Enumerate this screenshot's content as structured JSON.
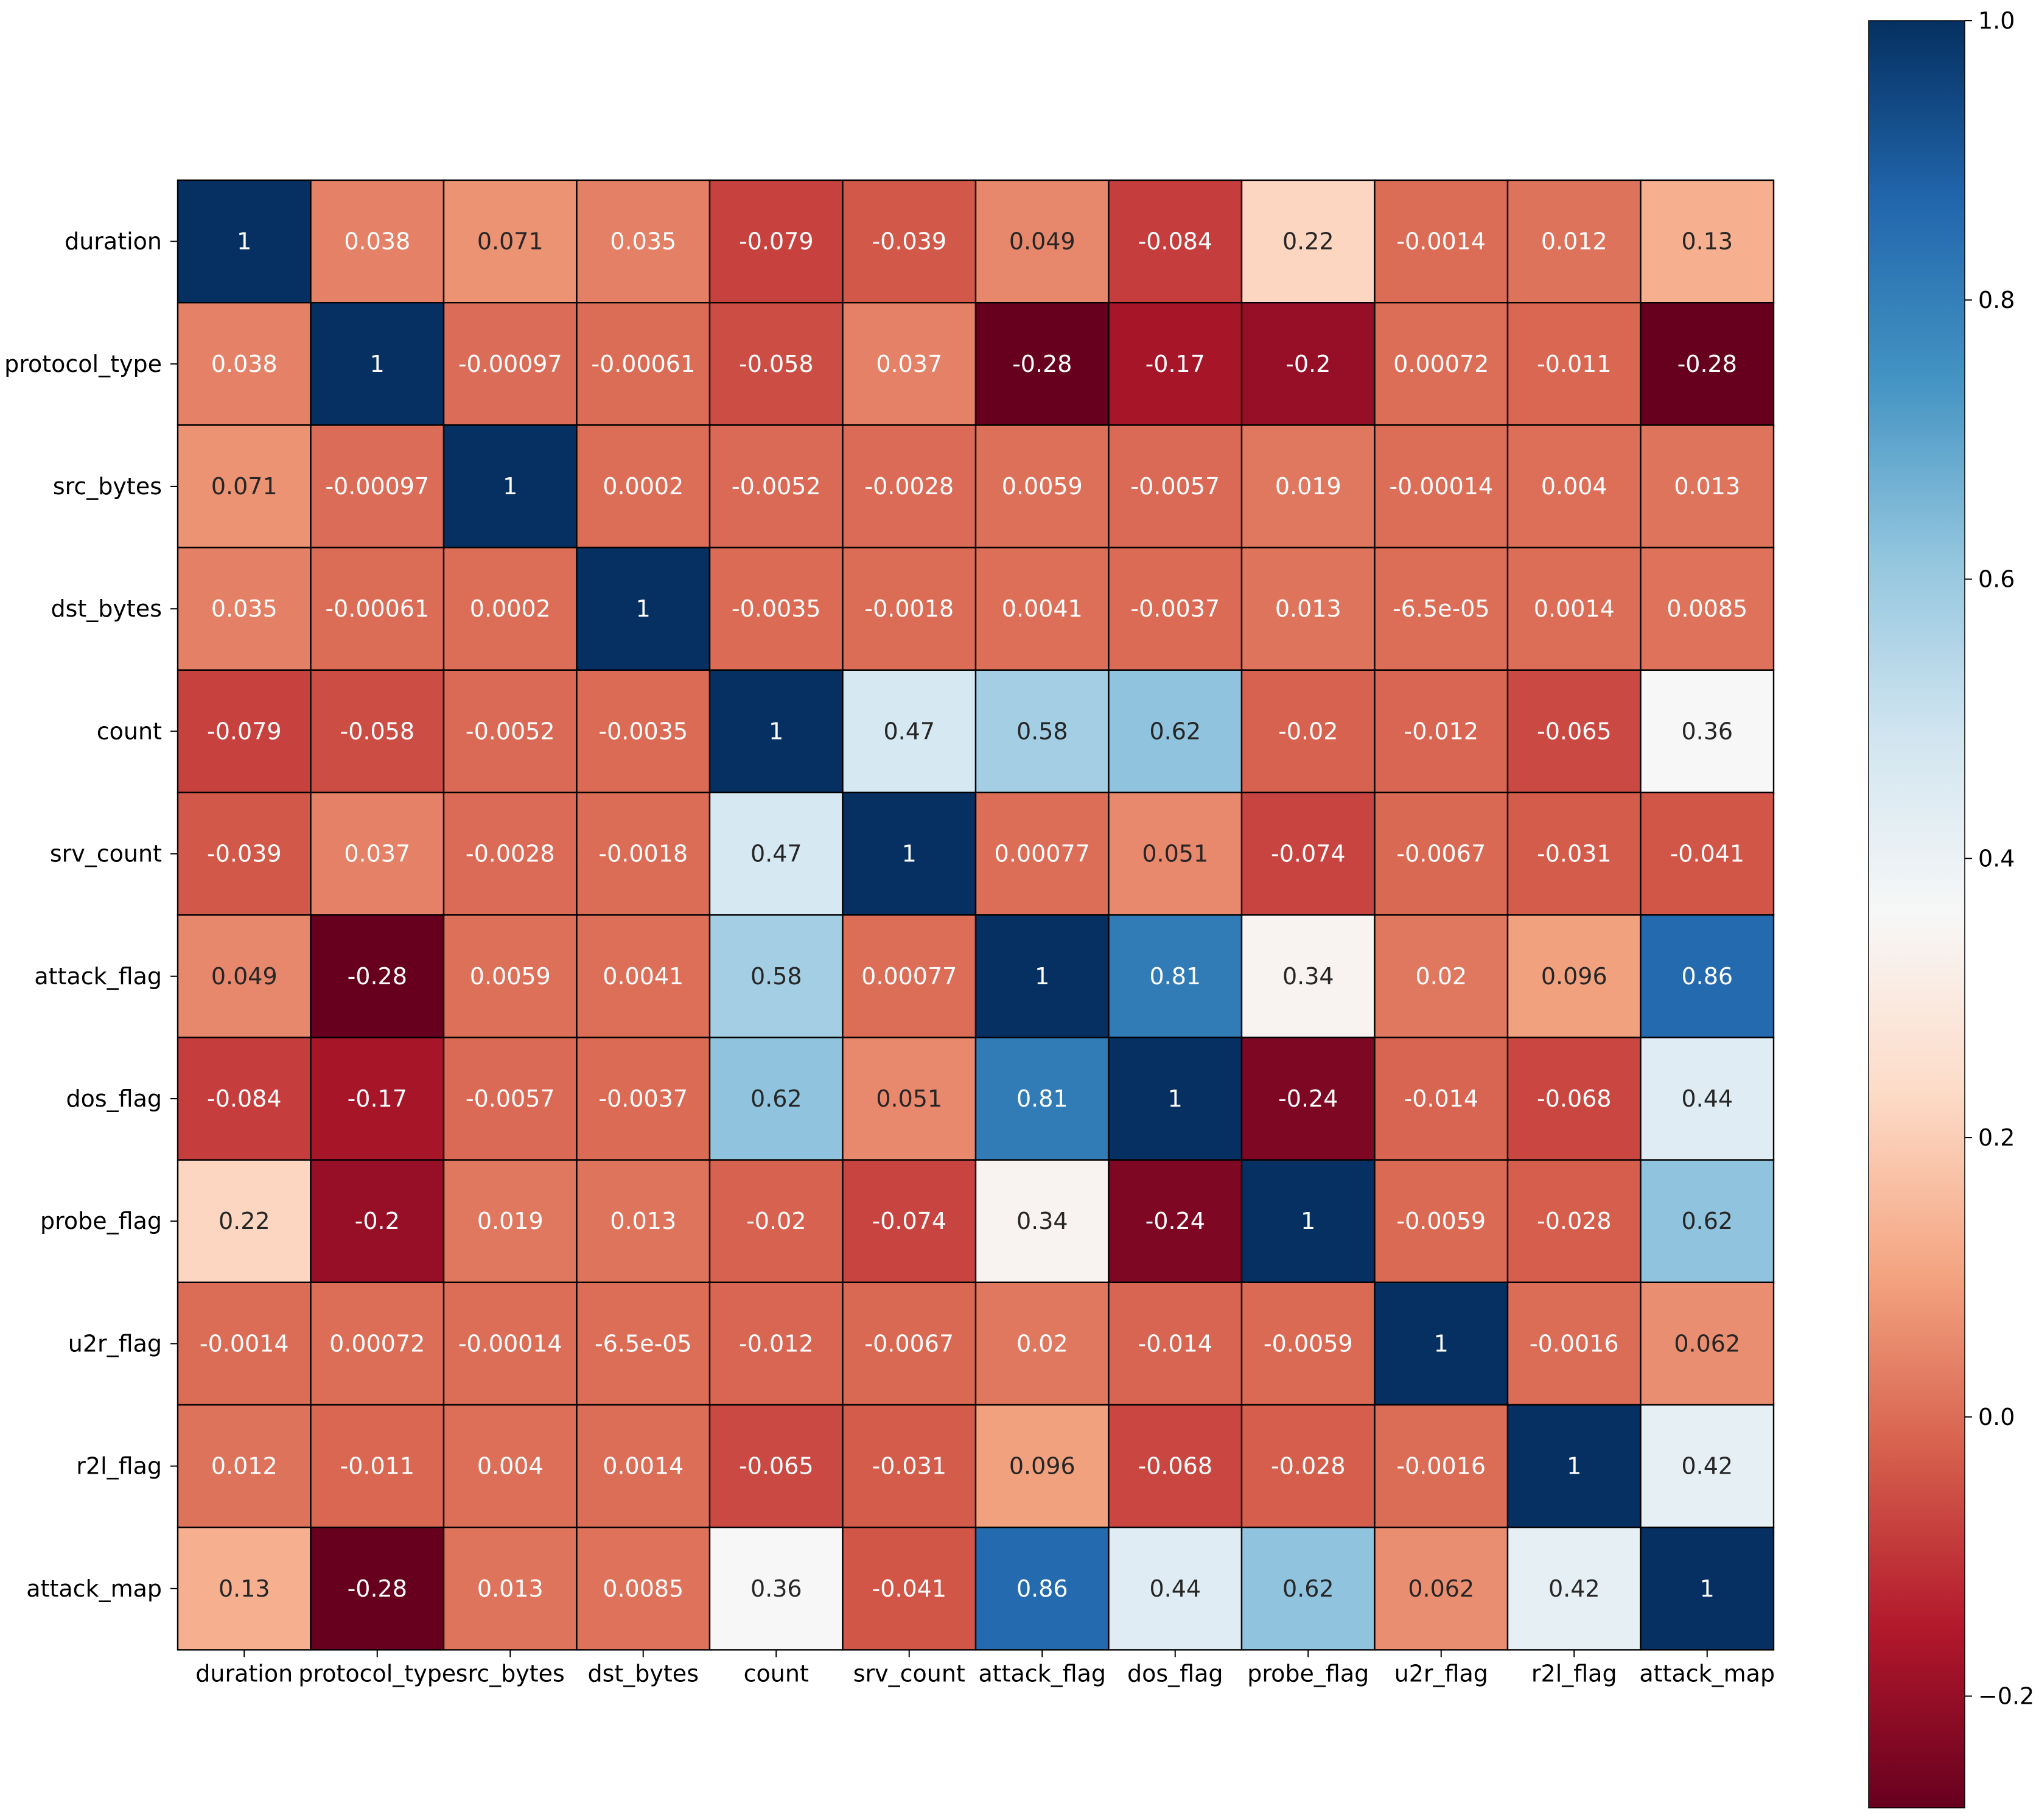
{
  "chart_data": {
    "type": "heatmap",
    "title": "",
    "xlabel": "",
    "ylabel": "",
    "row_labels": [
      "duration",
      "protocol_type",
      "src_bytes",
      "dst_bytes",
      "count",
      "srv_count",
      "attack_flag",
      "dos_flag",
      "probe_flag",
      "u2r_flag",
      "r2l_flag",
      "attack_map"
    ],
    "col_labels": [
      "duration",
      "protocol_type",
      "src_bytes",
      "dst_bytes",
      "count",
      "srv_count",
      "attack_flag",
      "dos_flag",
      "probe_flag",
      "u2r_flag",
      "r2l_flag",
      "attack_map"
    ],
    "values": [
      [
        1,
        0.038,
        0.071,
        0.035,
        -0.079,
        -0.039,
        0.049,
        -0.084,
        0.22,
        -0.0014,
        0.012,
        0.13
      ],
      [
        0.038,
        1,
        -0.00097,
        -0.00061,
        -0.058,
        0.037,
        -0.28,
        -0.17,
        -0.2,
        0.00072,
        -0.011,
        -0.28
      ],
      [
        0.071,
        -0.00097,
        1,
        0.0002,
        -0.0052,
        -0.0028,
        0.0059,
        -0.0057,
        0.019,
        -0.00014,
        0.004,
        0.013
      ],
      [
        0.035,
        -0.00061,
        0.0002,
        1,
        -0.0035,
        -0.0018,
        0.0041,
        -0.0037,
        0.013,
        -6.5e-05,
        0.0014,
        0.0085
      ],
      [
        -0.079,
        -0.058,
        -0.0052,
        -0.0035,
        1,
        0.47,
        0.58,
        0.62,
        -0.02,
        -0.012,
        -0.065,
        0.36
      ],
      [
        -0.039,
        0.037,
        -0.0028,
        -0.0018,
        0.47,
        1,
        0.00077,
        0.051,
        -0.074,
        -0.0067,
        -0.031,
        -0.041
      ],
      [
        0.049,
        -0.28,
        0.0059,
        0.0041,
        0.58,
        0.00077,
        1,
        0.81,
        0.34,
        0.02,
        0.096,
        0.86
      ],
      [
        -0.084,
        -0.17,
        -0.0057,
        -0.0037,
        0.62,
        0.051,
        0.81,
        1,
        -0.24,
        -0.014,
        -0.068,
        0.44
      ],
      [
        0.22,
        -0.2,
        0.019,
        0.013,
        -0.02,
        -0.074,
        0.34,
        -0.24,
        1,
        -0.0059,
        -0.028,
        0.62
      ],
      [
        -0.0014,
        0.00072,
        -0.00014,
        -6.5e-05,
        -0.012,
        -0.0067,
        0.02,
        -0.014,
        -0.0059,
        1,
        -0.0016,
        0.062
      ],
      [
        0.012,
        -0.011,
        0.004,
        0.0014,
        -0.065,
        -0.031,
        0.096,
        -0.068,
        -0.028,
        -0.0016,
        1,
        0.42
      ],
      [
        0.13,
        -0.28,
        0.013,
        0.0085,
        0.36,
        -0.041,
        0.86,
        0.44,
        0.62,
        0.062,
        0.42,
        1
      ]
    ],
    "cell_labels": [
      [
        "1",
        "0.038",
        "0.071",
        "0.035",
        "-0.079",
        "-0.039",
        "0.049",
        "-0.084",
        "0.22",
        "-0.0014",
        "0.012",
        "0.13"
      ],
      [
        "0.038",
        "1",
        "-0.00097",
        "-0.00061",
        "-0.058",
        "0.037",
        "-0.28",
        "-0.17",
        "-0.2",
        "0.00072",
        "-0.011",
        "-0.28"
      ],
      [
        "0.071",
        "-0.00097",
        "1",
        "0.0002",
        "-0.0052",
        "-0.0028",
        "0.0059",
        "-0.0057",
        "0.019",
        "-0.00014",
        "0.004",
        "0.013"
      ],
      [
        "0.035",
        "-0.00061",
        "0.0002",
        "1",
        "-0.0035",
        "-0.0018",
        "0.0041",
        "-0.0037",
        "0.013",
        "-6.5e-05",
        "0.0014",
        "0.0085"
      ],
      [
        "-0.079",
        "-0.058",
        "-0.0052",
        "-0.0035",
        "1",
        "0.47",
        "0.58",
        "0.62",
        "-0.02",
        "-0.012",
        "-0.065",
        "0.36"
      ],
      [
        "-0.039",
        "0.037",
        "-0.0028",
        "-0.0018",
        "0.47",
        "1",
        "0.00077",
        "0.051",
        "-0.074",
        "-0.0067",
        "-0.031",
        "-0.041"
      ],
      [
        "0.049",
        "-0.28",
        "0.0059",
        "0.0041",
        "0.58",
        "0.00077",
        "1",
        "0.81",
        "0.34",
        "0.02",
        "0.096",
        "0.86"
      ],
      [
        "-0.084",
        "-0.17",
        "-0.0057",
        "-0.0037",
        "0.62",
        "0.051",
        "0.81",
        "1",
        "-0.24",
        "-0.014",
        "-0.068",
        "0.44"
      ],
      [
        "0.22",
        "-0.2",
        "0.019",
        "0.013",
        "-0.02",
        "-0.074",
        "0.34",
        "-0.24",
        "1",
        "-0.0059",
        "-0.028",
        "0.62"
      ],
      [
        "-0.0014",
        "0.00072",
        "-0.00014",
        "-6.5e-05",
        "-0.012",
        "-0.0067",
        "0.02",
        "-0.014",
        "-0.0059",
        "1",
        "-0.0016",
        "0.062"
      ],
      [
        "0.012",
        "-0.011",
        "0.004",
        "0.0014",
        "-0.065",
        "-0.031",
        "0.096",
        "-0.068",
        "-0.028",
        "-0.0016",
        "1",
        "0.42"
      ],
      [
        "0.13",
        "-0.28",
        "0.013",
        "0.0085",
        "0.36",
        "-0.041",
        "0.86",
        "0.44",
        "0.62",
        "0.062",
        "0.42",
        "1"
      ]
    ],
    "colormap": "RdBu",
    "vmin": -0.28,
    "vmax": 1.0,
    "colorbar": {
      "ticks": [
        1.0,
        0.8,
        0.6,
        0.4,
        0.2,
        0.0,
        -0.2
      ],
      "tick_labels": [
        "1.0",
        "0.8",
        "0.6",
        "0.4",
        "0.2",
        "0.0",
        "−0.2"
      ]
    },
    "grid": false,
    "legend": "colorbar-right"
  }
}
